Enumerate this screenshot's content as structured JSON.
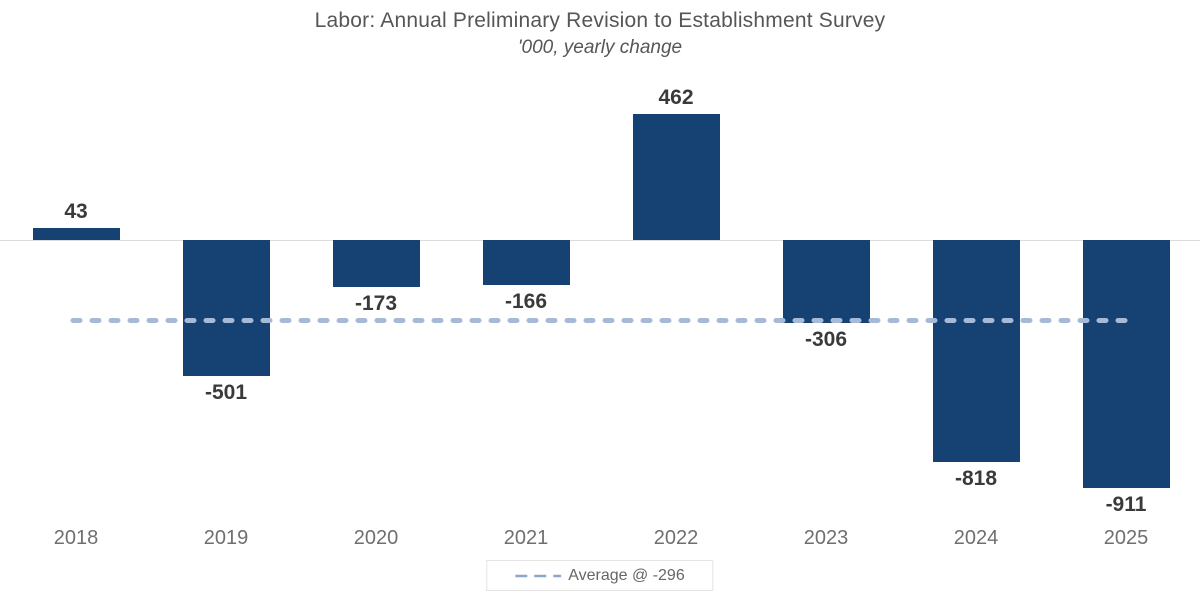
{
  "chart": {
    "title": "Labor: Annual Preliminary Revision to Establishment Survey",
    "subtitle": "'000, yearly change"
  },
  "legend": {
    "label": "Average @ -296"
  },
  "chart_data": {
    "type": "bar",
    "categories": [
      "2018",
      "2019",
      "2020",
      "2021",
      "2022",
      "2023",
      "2024",
      "2025"
    ],
    "values": [
      43,
      -501,
      -173,
      -166,
      462,
      -306,
      -818,
      -911
    ],
    "average": -296,
    "title": "Labor: Annual Preliminary Revision to Establishment Survey",
    "subtitle": "'000, yearly change",
    "xlabel": "",
    "ylabel": "",
    "ylim": [
      -1000,
      550
    ],
    "grid": false,
    "legend_position": "bottom-center",
    "colors": {
      "bar": "#164273",
      "average_line": "#a6bad8",
      "legend_dash": "#8ca6cc",
      "value_label": "#3a3a3a",
      "axis_label": "#6f6f6f",
      "title": "#565656",
      "zero_line": "#dcdcdc"
    }
  }
}
